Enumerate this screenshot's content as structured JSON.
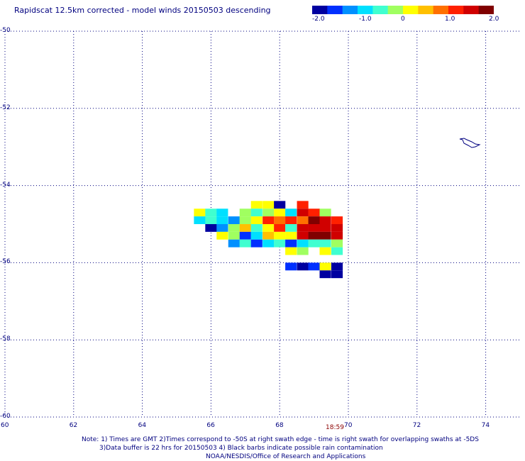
{
  "title": "Rapidscat 12.5km corrected - model winds 20150503 descending",
  "colorbar": {
    "tick_labels": [
      "-2.0",
      "-1.0",
      "0",
      "1.0",
      "2.0"
    ],
    "ticks": [
      -2.0,
      -1.0,
      0,
      1.0,
      2.0
    ],
    "range": [
      -2.0,
      2.0
    ],
    "colors": [
      "#0000a0",
      "#0030ff",
      "#0090ff",
      "#00e0ff",
      "#40ffd0",
      "#a0ff60",
      "#ffff00",
      "#ffc000",
      "#ff7000",
      "#ff2000",
      "#d00000",
      "#800000"
    ]
  },
  "map": {
    "lon_range": [
      60,
      75
    ],
    "lat_range": [
      -50,
      -60
    ],
    "x_tick_labels": [
      "60",
      "62",
      "64",
      "66",
      "68",
      "70",
      "72",
      "74"
    ],
    "x_ticks": [
      60,
      62,
      64,
      66,
      68,
      70,
      72,
      74
    ],
    "y_tick_labels": [
      "-50",
      "-52",
      "-54",
      "-56",
      "-58",
      "-60"
    ],
    "y_ticks": [
      -50,
      -52,
      -54,
      -56,
      -58,
      -60
    ],
    "grid": "dotted",
    "grid_color": "#00007f",
    "coast_color": "#000080",
    "time_label": "18:59",
    "cell_size_deg": [
      0.3333,
      0.2
    ]
  },
  "wind_cells": [
    {
      "lon": 67.33,
      "lat": -54.5,
      "v": 0.0
    },
    {
      "lon": 67.67,
      "lat": -54.5,
      "v": 0.1
    },
    {
      "lon": 68.0,
      "lat": -54.5,
      "v": -1.8
    },
    {
      "lon": 68.67,
      "lat": -54.5,
      "v": 1.2
    },
    {
      "lon": 65.67,
      "lat": -54.7,
      "v": 0.3
    },
    {
      "lon": 66.0,
      "lat": -54.7,
      "v": -0.6
    },
    {
      "lon": 66.33,
      "lat": -54.7,
      "v": -0.8
    },
    {
      "lon": 67.0,
      "lat": -54.7,
      "v": -0.3
    },
    {
      "lon": 67.33,
      "lat": -54.7,
      "v": -0.6
    },
    {
      "lon": 67.67,
      "lat": -54.7,
      "v": -0.1
    },
    {
      "lon": 68.0,
      "lat": -54.7,
      "v": 0.2
    },
    {
      "lon": 68.33,
      "lat": -54.7,
      "v": -0.7
    },
    {
      "lon": 68.67,
      "lat": -54.7,
      "v": 1.5
    },
    {
      "lon": 69.0,
      "lat": -54.7,
      "v": 1.2
    },
    {
      "lon": 69.33,
      "lat": -54.7,
      "v": -0.1
    },
    {
      "lon": 65.67,
      "lat": -54.9,
      "v": -0.7
    },
    {
      "lon": 66.0,
      "lat": -54.9,
      "v": -0.4
    },
    {
      "lon": 66.33,
      "lat": -54.9,
      "v": -0.9
    },
    {
      "lon": 66.67,
      "lat": -54.9,
      "v": -1.2
    },
    {
      "lon": 67.0,
      "lat": -54.9,
      "v": -0.2
    },
    {
      "lon": 67.33,
      "lat": -54.9,
      "v": 0.3
    },
    {
      "lon": 67.67,
      "lat": -54.9,
      "v": 1.2
    },
    {
      "lon": 68.0,
      "lat": -54.9,
      "v": 0.8
    },
    {
      "lon": 68.33,
      "lat": -54.9,
      "v": 1.3
    },
    {
      "lon": 68.67,
      "lat": -54.9,
      "v": 0.9
    },
    {
      "lon": 69.0,
      "lat": -54.9,
      "v": 1.9
    },
    {
      "lon": 69.33,
      "lat": -54.9,
      "v": 1.4
    },
    {
      "lon": 69.67,
      "lat": -54.9,
      "v": 1.2
    },
    {
      "lon": 66.0,
      "lat": -55.1,
      "v": -1.8
    },
    {
      "lon": 66.33,
      "lat": -55.1,
      "v": -1.1
    },
    {
      "lon": 66.67,
      "lat": -55.1,
      "v": -0.3
    },
    {
      "lon": 67.0,
      "lat": -55.1,
      "v": 0.4
    },
    {
      "lon": 67.33,
      "lat": -55.1,
      "v": -0.4
    },
    {
      "lon": 67.67,
      "lat": -55.1,
      "v": 0.1
    },
    {
      "lon": 68.0,
      "lat": -55.1,
      "v": 1.0
    },
    {
      "lon": 68.33,
      "lat": -55.1,
      "v": -0.6
    },
    {
      "lon": 68.67,
      "lat": -55.1,
      "v": 1.5
    },
    {
      "lon": 69.0,
      "lat": -55.1,
      "v": 1.6
    },
    {
      "lon": 69.33,
      "lat": -55.1,
      "v": 1.4
    },
    {
      "lon": 69.67,
      "lat": -55.1,
      "v": 1.6
    },
    {
      "lon": 66.33,
      "lat": -55.3,
      "v": 0.3
    },
    {
      "lon": 66.67,
      "lat": -55.3,
      "v": -0.2
    },
    {
      "lon": 67.0,
      "lat": -55.3,
      "v": -1.5
    },
    {
      "lon": 67.33,
      "lat": -55.3,
      "v": -0.8
    },
    {
      "lon": 67.67,
      "lat": -55.3,
      "v": 0.5
    },
    {
      "lon": 68.0,
      "lat": -55.3,
      "v": 0.3
    },
    {
      "lon": 68.33,
      "lat": -55.3,
      "v": 0.2
    },
    {
      "lon": 68.67,
      "lat": -55.3,
      "v": 1.6
    },
    {
      "lon": 69.0,
      "lat": -55.3,
      "v": 1.8
    },
    {
      "lon": 69.33,
      "lat": -55.3,
      "v": 1.7
    },
    {
      "lon": 69.67,
      "lat": -55.3,
      "v": 1.5
    },
    {
      "lon": 66.67,
      "lat": -55.5,
      "v": -1.2
    },
    {
      "lon": 67.0,
      "lat": -55.5,
      "v": -0.4
    },
    {
      "lon": 67.33,
      "lat": -55.5,
      "v": -1.4
    },
    {
      "lon": 67.67,
      "lat": -55.5,
      "v": -0.7
    },
    {
      "lon": 68.0,
      "lat": -55.5,
      "v": -0.6
    },
    {
      "lon": 68.33,
      "lat": -55.5,
      "v": -1.6
    },
    {
      "lon": 68.67,
      "lat": -55.5,
      "v": -0.9
    },
    {
      "lon": 69.0,
      "lat": -55.5,
      "v": -0.5
    },
    {
      "lon": 69.33,
      "lat": -55.5,
      "v": -0.6
    },
    {
      "lon": 69.67,
      "lat": -55.5,
      "v": -0.3
    },
    {
      "lon": 68.33,
      "lat": -55.7,
      "v": 0.2
    },
    {
      "lon": 68.67,
      "lat": -55.7,
      "v": -0.3
    },
    {
      "lon": 69.33,
      "lat": -55.7,
      "v": 0.0
    },
    {
      "lon": 69.67,
      "lat": -55.7,
      "v": -0.5
    },
    {
      "lon": 68.33,
      "lat": -56.1,
      "v": -1.6
    },
    {
      "lon": 68.67,
      "lat": -56.1,
      "v": -1.7
    },
    {
      "lon": 69.0,
      "lat": -56.1,
      "v": -1.6
    },
    {
      "lon": 69.33,
      "lat": -56.1,
      "v": 0.1
    },
    {
      "lon": 69.67,
      "lat": -56.1,
      "v": -1.7
    },
    {
      "lon": 69.33,
      "lat": -56.3,
      "v": -1.9
    },
    {
      "lon": 69.67,
      "lat": -56.3,
      "v": -1.9
    }
  ],
  "notes": [
    "Note: 1) Times are GMT 2)Times correspond to -50S at right swath edge - time is right swath for overlapping swaths at -5DS",
    "3)Data buffer is 22 hrs for 20150503 4) Black barbs indicate possible rain contamination",
    "NOAA/NESDIS/Office of Research and Applications"
  ]
}
